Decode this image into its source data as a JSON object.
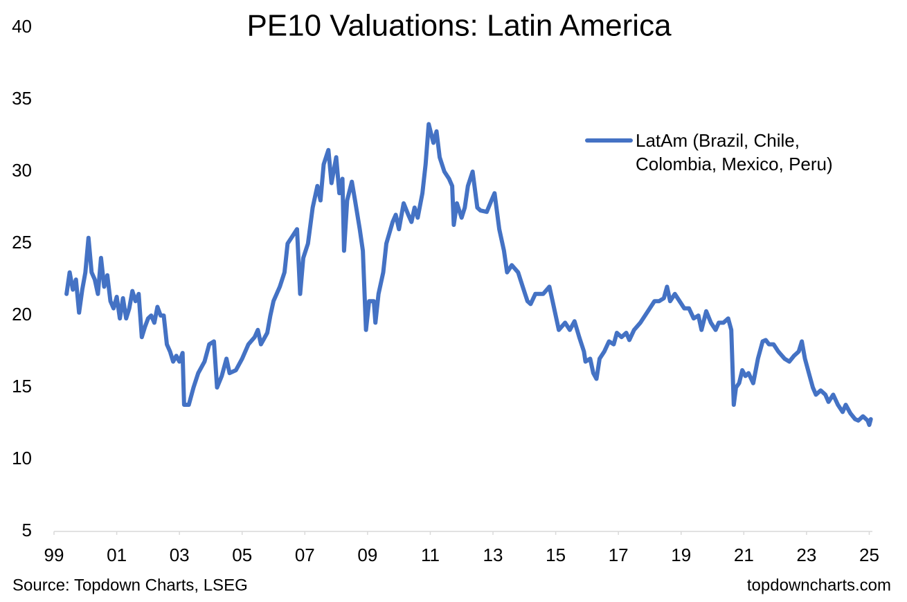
{
  "chart_data": {
    "type": "line",
    "title": "PE10 Valuations: Latin America",
    "source": "Source: Topdown Charts, LSEG",
    "watermark": "topdowncharts.com",
    "legend": "upper right",
    "grid": false,
    "xlim": [
      1999,
      2025.1
    ],
    "ylim": [
      5,
      40
    ],
    "yticks": [
      5,
      10,
      15,
      20,
      25,
      30,
      35,
      40
    ],
    "xticks": [
      {
        "value": 1999,
        "label": "99"
      },
      {
        "value": 2001,
        "label": "01"
      },
      {
        "value": 2003,
        "label": "03"
      },
      {
        "value": 2005,
        "label": "05"
      },
      {
        "value": 2007,
        "label": "07"
      },
      {
        "value": 2009,
        "label": "09"
      },
      {
        "value": 2011,
        "label": "11"
      },
      {
        "value": 2013,
        "label": "13"
      },
      {
        "value": 2015,
        "label": "15"
      },
      {
        "value": 2017,
        "label": "17"
      },
      {
        "value": 2019,
        "label": "19"
      },
      {
        "value": 2021,
        "label": "21"
      },
      {
        "value": 2023,
        "label": "23"
      },
      {
        "value": 2025,
        "label": "25"
      }
    ],
    "x": [
      1999.4,
      1999.5,
      1999.6,
      1999.7,
      1999.8,
      1999.9,
      2000.0,
      2000.1,
      2000.2,
      2000.3,
      2000.4,
      2000.5,
      2000.6,
      2000.7,
      2000.8,
      2000.9,
      2001.0,
      2001.1,
      2001.2,
      2001.3,
      2001.4,
      2001.5,
      2001.6,
      2001.7,
      2001.8,
      2001.9,
      2002.0,
      2002.1,
      2002.2,
      2002.3,
      2002.4,
      2002.5,
      2002.6,
      2002.7,
      2002.8,
      2002.9,
      2003.0,
      2003.1,
      2003.15,
      2003.3,
      2003.45,
      2003.6,
      2003.8,
      2003.95,
      2004.1,
      2004.2,
      2004.35,
      2004.5,
      2004.6,
      2004.8,
      2005.0,
      2005.2,
      2005.4,
      2005.5,
      2005.6,
      2005.8,
      2005.9,
      2006.0,
      2006.2,
      2006.35,
      2006.45,
      2006.6,
      2006.75,
      2006.85,
      2006.95,
      2007.1,
      2007.25,
      2007.4,
      2007.5,
      2007.6,
      2007.75,
      2007.85,
      2008.0,
      2008.1,
      2008.2,
      2008.25,
      2008.35,
      2008.5,
      2008.6,
      2008.75,
      2008.85,
      2008.95,
      2009.05,
      2009.2,
      2009.25,
      2009.35,
      2009.5,
      2009.6,
      2009.8,
      2009.9,
      2010.0,
      2010.15,
      2010.3,
      2010.4,
      2010.5,
      2010.6,
      2010.75,
      2010.85,
      2010.95,
      2011.1,
      2011.2,
      2011.3,
      2011.45,
      2011.6,
      2011.7,
      2011.75,
      2011.85,
      2012.0,
      2012.1,
      2012.2,
      2012.35,
      2012.5,
      2012.6,
      2012.8,
      2012.95,
      2013.05,
      2013.2,
      2013.35,
      2013.45,
      2013.6,
      2013.8,
      2013.95,
      2014.1,
      2014.2,
      2014.35,
      2014.6,
      2014.8,
      2014.9,
      2015.0,
      2015.1,
      2015.3,
      2015.45,
      2015.6,
      2015.75,
      2015.9,
      2015.95,
      2016.1,
      2016.2,
      2016.3,
      2016.4,
      2016.55,
      2016.7,
      2016.85,
      2016.95,
      2017.1,
      2017.25,
      2017.35,
      2017.5,
      2017.7,
      2017.85,
      2018.0,
      2018.15,
      2018.3,
      2018.45,
      2018.55,
      2018.65,
      2018.8,
      2018.95,
      2019.1,
      2019.25,
      2019.4,
      2019.55,
      2019.65,
      2019.8,
      2019.95,
      2020.1,
      2020.2,
      2020.35,
      2020.5,
      2020.6,
      2020.68,
      2020.75,
      2020.85,
      2020.95,
      2021.05,
      2021.15,
      2021.3,
      2021.45,
      2021.6,
      2021.7,
      2021.8,
      2021.95,
      2022.1,
      2022.3,
      2022.45,
      2022.6,
      2022.75,
      2022.85,
      2022.95,
      2023.1,
      2023.2,
      2023.3,
      2023.45,
      2023.6,
      2023.7,
      2023.85,
      2024.0,
      2024.15,
      2024.25,
      2024.4,
      2024.55,
      2024.65,
      2024.8,
      2024.95,
      2025.0,
      2025.05
    ],
    "series": [
      {
        "name": "LatAm (Brazil, Chile, Colombia, Mexico, Peru)",
        "color": "#4472c4",
        "values": [
          21.5,
          23.0,
          21.8,
          22.5,
          20.2,
          21.8,
          23.0,
          25.4,
          23.0,
          22.5,
          21.5,
          24.0,
          22.0,
          22.8,
          21.0,
          20.5,
          21.3,
          19.8,
          21.2,
          19.8,
          20.5,
          21.7,
          21.0,
          21.5,
          18.5,
          19.2,
          19.8,
          20.0,
          19.5,
          20.6,
          20.0,
          20.0,
          18.0,
          17.5,
          16.8,
          17.2,
          16.8,
          17.4,
          13.8,
          13.8,
          15.0,
          16.0,
          16.8,
          18.0,
          18.2,
          15.0,
          15.8,
          17.0,
          16.0,
          16.2,
          17.0,
          18.0,
          18.5,
          19.0,
          18.0,
          18.8,
          20.0,
          21.0,
          22.0,
          23.0,
          25.0,
          25.5,
          26.0,
          21.5,
          24.0,
          25.0,
          27.5,
          29.0,
          28.0,
          30.5,
          31.5,
          29.2,
          31.0,
          28.5,
          29.5,
          24.5,
          28.0,
          29.3,
          28.0,
          26.0,
          24.5,
          19.0,
          21.0,
          21.0,
          19.5,
          21.5,
          23.0,
          25.0,
          26.5,
          27.0,
          26.0,
          27.8,
          27.0,
          26.5,
          27.5,
          26.8,
          28.5,
          30.5,
          33.3,
          32.0,
          32.8,
          31.0,
          30.0,
          29.5,
          29.0,
          26.3,
          27.8,
          26.8,
          27.5,
          29.0,
          30.0,
          27.5,
          27.3,
          27.2,
          28.0,
          28.5,
          26.0,
          24.5,
          23.0,
          23.5,
          23.0,
          22.0,
          21.0,
          20.8,
          21.5,
          21.5,
          22.0,
          21.0,
          20.0,
          19.0,
          19.5,
          19.0,
          19.6,
          18.5,
          17.5,
          16.8,
          17.0,
          16.0,
          15.6,
          17.0,
          17.5,
          18.2,
          18.0,
          18.8,
          18.5,
          18.8,
          18.3,
          19.0,
          19.5,
          20.0,
          20.5,
          21.0,
          21.0,
          21.2,
          22.0,
          21.0,
          21.5,
          21.0,
          20.5,
          20.5,
          19.8,
          20.0,
          19.0,
          20.3,
          19.5,
          19.0,
          19.5,
          19.5,
          19.8,
          19.0,
          13.8,
          15.0,
          15.3,
          16.2,
          15.8,
          16.0,
          15.3,
          17.0,
          18.2,
          18.3,
          18.0,
          18.0,
          17.5,
          17.0,
          16.8,
          17.2,
          17.5,
          18.2,
          17.0,
          15.8,
          15.0,
          14.5,
          14.8,
          14.5,
          14.0,
          14.5,
          13.8,
          13.3,
          13.8,
          13.2,
          12.8,
          12.7,
          13.0,
          12.7,
          12.4,
          12.8
        ]
      }
    ]
  }
}
